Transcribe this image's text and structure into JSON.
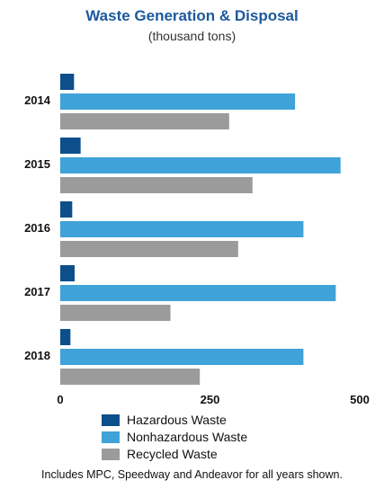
{
  "chart_data": {
    "type": "bar",
    "orientation": "horizontal",
    "title": "Waste Generation & Disposal",
    "subtitle": "(thousand tons)",
    "categories": [
      "2014",
      "2015",
      "2016",
      "2017",
      "2018"
    ],
    "series": [
      {
        "name": "Hazardous Waste",
        "color": "#0d4f8b",
        "values": [
          23,
          34,
          20,
          24,
          17
        ]
      },
      {
        "name": "Nonhazardous Waste",
        "color": "#3fa2d8",
        "values": [
          392,
          468,
          406,
          460,
          406
        ]
      },
      {
        "name": "Recycled Waste",
        "color": "#9b9b9b",
        "values": [
          282,
          321,
          297,
          184,
          233
        ]
      }
    ],
    "x_ticks": [
      "0",
      "250",
      "500"
    ],
    "xlim": [
      0,
      500
    ],
    "grid": false,
    "legend_position": "bottom",
    "footnote": "Includes MPC, Speedway and Andeavor for all years shown."
  }
}
